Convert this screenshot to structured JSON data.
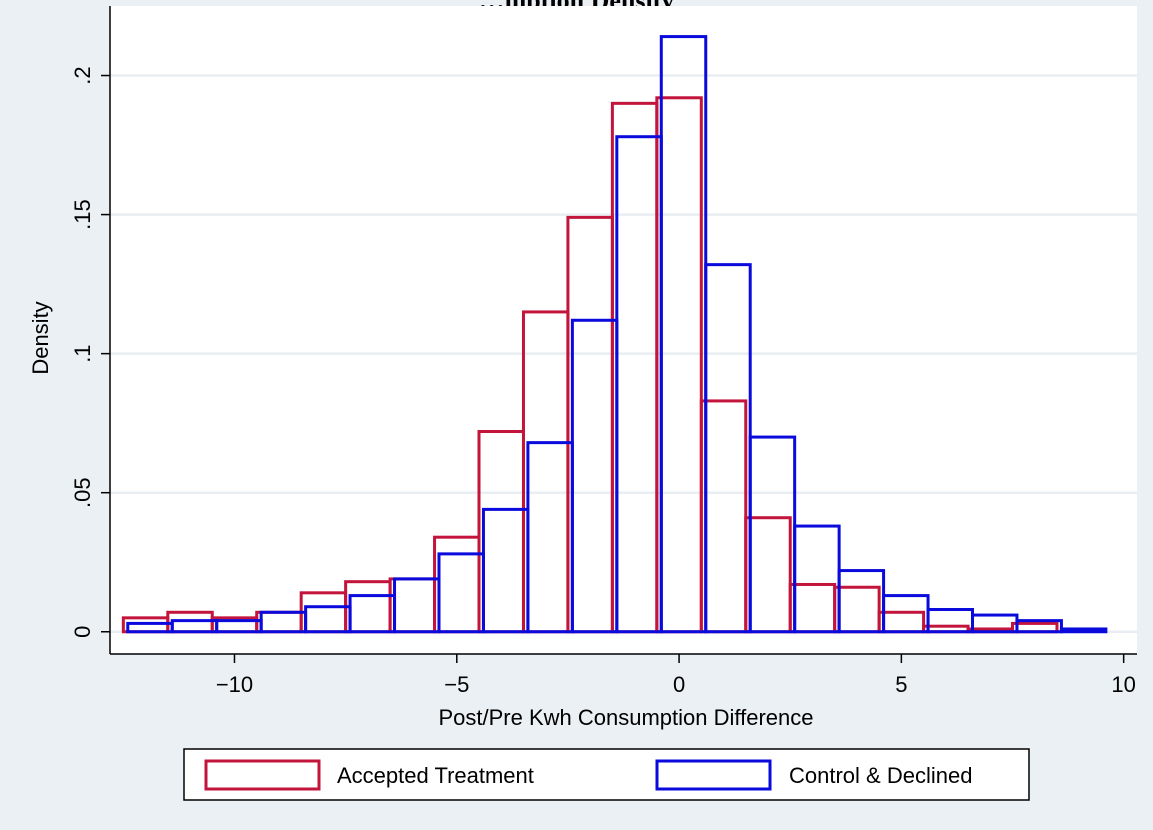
{
  "chart_data": {
    "type": "bar",
    "title": "",
    "title_fragment": "…mption Density",
    "xlabel": "Post/Pre Kwh Consumption Difference",
    "ylabel": "Density",
    "xlim": [
      -12.8,
      10.3
    ],
    "ylim": [
      -0.008,
      0.225
    ],
    "xticks": [
      {
        "value": -10,
        "label": "−10"
      },
      {
        "value": -5,
        "label": "−5"
      },
      {
        "value": 0,
        "label": "0"
      },
      {
        "value": 5,
        "label": "5"
      },
      {
        "value": 10,
        "label": "10"
      }
    ],
    "yticks": [
      {
        "value": 0,
        "label": "0"
      },
      {
        "value": 0.05,
        "label": ".05"
      },
      {
        "value": 0.1,
        "label": ".1"
      },
      {
        "value": 0.15,
        "label": ".15"
      },
      {
        "value": 0.2,
        "label": ".2"
      }
    ],
    "grid": true,
    "legend_position": "bottom",
    "series": [
      {
        "name": "Accepted Treatment",
        "color": "#c3143c",
        "bins": [
          {
            "x0": -12.5,
            "x1": -11.5,
            "y": 0.005
          },
          {
            "x0": -11.5,
            "x1": -10.5,
            "y": 0.007
          },
          {
            "x0": -10.5,
            "x1": -9.5,
            "y": 0.005
          },
          {
            "x0": -9.5,
            "x1": -8.5,
            "y": 0.007
          },
          {
            "x0": -8.5,
            "x1": -7.5,
            "y": 0.014
          },
          {
            "x0": -7.5,
            "x1": -6.5,
            "y": 0.018
          },
          {
            "x0": -6.5,
            "x1": -5.5,
            "y": 0.019
          },
          {
            "x0": -5.5,
            "x1": -4.5,
            "y": 0.034
          },
          {
            "x0": -4.5,
            "x1": -3.5,
            "y": 0.072
          },
          {
            "x0": -3.5,
            "x1": -2.5,
            "y": 0.115
          },
          {
            "x0": -2.5,
            "x1": -1.5,
            "y": 0.149
          },
          {
            "x0": -1.5,
            "x1": -0.5,
            "y": 0.19
          },
          {
            "x0": -0.5,
            "x1": 0.5,
            "y": 0.192
          },
          {
            "x0": 0.5,
            "x1": 1.5,
            "y": 0.083
          },
          {
            "x0": 1.5,
            "x1": 2.5,
            "y": 0.041
          },
          {
            "x0": 2.5,
            "x1": 3.5,
            "y": 0.017
          },
          {
            "x0": 3.5,
            "x1": 4.5,
            "y": 0.016
          },
          {
            "x0": 4.5,
            "x1": 5.5,
            "y": 0.007
          },
          {
            "x0": 5.5,
            "x1": 6.5,
            "y": 0.002
          },
          {
            "x0": 6.5,
            "x1": 7.5,
            "y": 0.001
          },
          {
            "x0": 7.5,
            "x1": 8.5,
            "y": 0.003
          }
        ]
      },
      {
        "name": "Control & Declined",
        "color": "#0a0adc",
        "bins": [
          {
            "x0": -12.4,
            "x1": -11.4,
            "y": 0.003
          },
          {
            "x0": -11.4,
            "x1": -10.4,
            "y": 0.004
          },
          {
            "x0": -10.4,
            "x1": -9.4,
            "y": 0.004
          },
          {
            "x0": -9.4,
            "x1": -8.4,
            "y": 0.007
          },
          {
            "x0": -8.4,
            "x1": -7.4,
            "y": 0.009
          },
          {
            "x0": -7.4,
            "x1": -6.4,
            "y": 0.013
          },
          {
            "x0": -6.4,
            "x1": -5.4,
            "y": 0.019
          },
          {
            "x0": -5.4,
            "x1": -4.4,
            "y": 0.028
          },
          {
            "x0": -4.4,
            "x1": -3.4,
            "y": 0.044
          },
          {
            "x0": -3.4,
            "x1": -2.4,
            "y": 0.068
          },
          {
            "x0": -2.4,
            "x1": -1.4,
            "y": 0.112
          },
          {
            "x0": -1.4,
            "x1": -0.4,
            "y": 0.178
          },
          {
            "x0": -0.4,
            "x1": 0.6,
            "y": 0.214
          },
          {
            "x0": 0.6,
            "x1": 1.6,
            "y": 0.132
          },
          {
            "x0": 1.6,
            "x1": 2.6,
            "y": 0.07
          },
          {
            "x0": 2.6,
            "x1": 3.6,
            "y": 0.038
          },
          {
            "x0": 3.6,
            "x1": 4.6,
            "y": 0.022
          },
          {
            "x0": 4.6,
            "x1": 5.6,
            "y": 0.013
          },
          {
            "x0": 5.6,
            "x1": 6.6,
            "y": 0.008
          },
          {
            "x0": 6.6,
            "x1": 7.6,
            "y": 0.006
          },
          {
            "x0": 7.6,
            "x1": 8.6,
            "y": 0.004
          },
          {
            "x0": 8.6,
            "x1": 9.6,
            "y": 0.001
          }
        ]
      }
    ]
  }
}
